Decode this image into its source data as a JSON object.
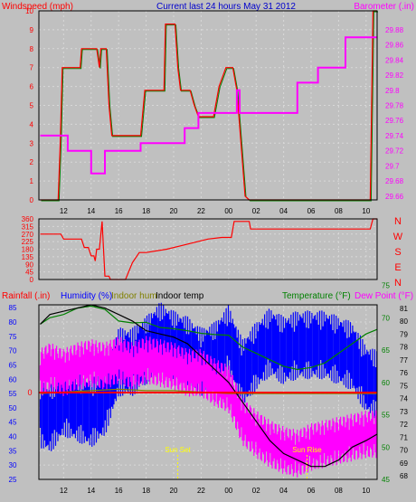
{
  "colors": {
    "background": "#c0c0c0",
    "windspeed": "#ff0000",
    "barometer": "#ff00ff",
    "direction": "#ff0000",
    "rainfall": "#ff0000",
    "humidity": "#0000ff",
    "indoor_hum": "#808000",
    "indoor_temp": "#000000",
    "temperature": "#008000",
    "dew_point": "#ff00ff",
    "sun": "#ffff00"
  },
  "chart_data": [
    {
      "type": "line",
      "title": "Current last 24 hours May 31 2012",
      "ylabel": "Windspeed (mph)",
      "ylabel_right": "Barometer (.in)",
      "x_ticks": [
        "12",
        "14",
        "16",
        "18",
        "20",
        "22",
        "00",
        "02",
        "04",
        "06",
        "08",
        "10"
      ],
      "x_tick_hours": [
        12,
        14,
        16,
        18,
        20,
        22,
        24,
        26,
        28,
        30,
        32,
        34
      ],
      "xlim": [
        10.2,
        34.8
      ],
      "ylim": [
        0,
        10
      ],
      "y_ticks": [
        "0",
        "1",
        "2",
        "3",
        "4",
        "5",
        "6",
        "7",
        "8",
        "9",
        "10"
      ],
      "ylim_right": [
        29.655,
        29.905
      ],
      "y_ticks_right": [
        "29.66",
        "29.68",
        "29.7",
        "29.72",
        "29.74",
        "29.76",
        "29.78",
        "29.8",
        "29.82",
        "29.84",
        "29.86",
        "29.88"
      ],
      "grid": true,
      "series": [
        {
          "name": "Windspeed (mph)",
          "axis": "left",
          "x": [
            10.3,
            11.6,
            11.75,
            11.9,
            12.4,
            13.2,
            13.3,
            14.4,
            14.6,
            14.7,
            15.1,
            15.3,
            15.5,
            17.4,
            17.6,
            17.9,
            18.4,
            19.3,
            19.4,
            20.1,
            20.3,
            20.5,
            21.2,
            21.5,
            21.8,
            22.2,
            22.9,
            23.3,
            23.8,
            24.3,
            24.6,
            25.2,
            25.5,
            25.6,
            27,
            29,
            31,
            33,
            34.3,
            34.5,
            34.8
          ],
          "y": [
            0,
            0,
            3,
            7,
            7,
            7,
            8,
            8,
            7,
            8,
            8,
            5,
            3.4,
            3.4,
            3.4,
            5.8,
            5.8,
            5.8,
            9.3,
            9.3,
            7,
            5.8,
            5.8,
            5,
            4.4,
            4.4,
            4.4,
            6,
            7,
            7,
            5.8,
            0.2,
            0,
            0,
            0,
            0,
            0,
            0,
            0,
            10,
            10
          ]
        },
        {
          "name": "Barometer (.in)",
          "axis": "right",
          "x": [
            10.3,
            12,
            12.3,
            13.6,
            14,
            14.7,
            15,
            17.4,
            17.6,
            20.3,
            20.8,
            21.6,
            21.8,
            22.1,
            24.3,
            24.6,
            24.8,
            25,
            28.5,
            29,
            30,
            30.5,
            32.2,
            32.5,
            34.8
          ],
          "y": [
            29.74,
            29.74,
            29.72,
            29.72,
            29.69,
            29.69,
            29.72,
            29.72,
            29.73,
            29.73,
            29.75,
            29.75,
            29.77,
            29.77,
            29.77,
            29.8,
            29.77,
            29.77,
            29.77,
            29.81,
            29.81,
            29.83,
            29.83,
            29.87,
            29.87
          ]
        }
      ]
    },
    {
      "type": "line",
      "ylabel": "",
      "ylabel_right": "N W S E N",
      "x_ticks": [
        "12",
        "14",
        "16",
        "18",
        "20",
        "22",
        "00",
        "02",
        "04",
        "06",
        "08",
        "10"
      ],
      "xlim": [
        10.2,
        34.8
      ],
      "ylim": [
        0,
        360
      ],
      "y_ticks": [
        "0",
        "45",
        "90",
        "135",
        "180",
        "225",
        "270",
        "315",
        "360"
      ],
      "grid": true,
      "series": [
        {
          "name": "Wind direction",
          "x": [
            10.3,
            11.8,
            12,
            13.3,
            13.5,
            13.8,
            14,
            14.2,
            14.3,
            14.4,
            14.6,
            14.8,
            15,
            15.3,
            15.4,
            16.5,
            17,
            17.5,
            18,
            19.5,
            20.5,
            21.5,
            22.5,
            23.5,
            24.2,
            24.4,
            25.5,
            25.6,
            28,
            31,
            33,
            34.3,
            34.5,
            34.8
          ],
          "y": [
            270,
            270,
            240,
            240,
            190,
            190,
            140,
            140,
            110,
            180,
            180,
            345,
            20,
            20,
            0,
            0,
            100,
            160,
            160,
            180,
            200,
            220,
            240,
            250,
            250,
            345,
            345,
            300,
            300,
            300,
            300,
            300,
            360,
            360
          ]
        }
      ]
    },
    {
      "type": "line",
      "ylabel": "Rainfall (.in)",
      "legend": [
        "Humidity (%)",
        "Indoor hum",
        "Indoor temp"
      ],
      "ylabel_right_1": "Temperature (°F)",
      "ylabel_right_2": "Dew Point (°F)",
      "x_ticks": [
        "12",
        "14",
        "16",
        "18",
        "20",
        "22",
        "00",
        "02",
        "04",
        "06",
        "08",
        "10"
      ],
      "xlim": [
        10.2,
        34.8
      ],
      "ylim": [
        25,
        86
      ],
      "y_ticks": [
        "25",
        "30",
        "35",
        "40",
        "45",
        "50",
        "55",
        "60",
        "65",
        "70",
        "75",
        "80",
        "85"
      ],
      "ylim_right": [
        45,
        72
      ],
      "y_ticks_right_1": [
        "45",
        "50",
        "55",
        "60",
        "65",
        "70",
        "75"
      ],
      "y_ticks_right_2": [
        "68",
        "69",
        "70",
        "71",
        "72",
        "73",
        "74",
        "75",
        "76",
        "77",
        "78",
        "79",
        "80",
        "81"
      ],
      "rain_marker": "0",
      "rain_value": 0,
      "annotations": [
        {
          "text": "Sun Set",
          "hour": 20.3
        },
        {
          "text": "Sun Rise",
          "hour": 29.7
        }
      ],
      "grid": true,
      "series": [
        {
          "name": "Humidity (%)",
          "x": [
            10.3,
            11,
            12,
            13,
            14,
            15,
            16,
            17,
            18,
            19,
            20,
            21,
            22,
            23,
            24,
            25,
            26,
            27,
            28,
            29,
            30,
            31,
            32,
            33,
            34,
            34.8
          ],
          "y": [
            48,
            46,
            52,
            50,
            48,
            52,
            66,
            66,
            70,
            75,
            72,
            70,
            66,
            68,
            74,
            62,
            68,
            73,
            70,
            72,
            72,
            72,
            70,
            68,
            60,
            58
          ]
        },
        {
          "name": "Indoor hum",
          "x": [
            10.3,
            12,
            14,
            16,
            18,
            20,
            22,
            24,
            26,
            28,
            30,
            32,
            34,
            34.8
          ],
          "y": [
            55,
            55.5,
            56,
            56.5,
            56,
            56,
            55.5,
            55,
            55,
            55,
            55,
            55,
            55,
            55
          ]
        },
        {
          "name": "Indoor temp",
          "x": [
            10.3,
            11,
            12,
            13,
            14,
            15,
            16,
            17,
            18,
            19,
            20,
            21,
            22,
            23,
            24,
            25,
            26,
            27,
            28,
            29,
            30,
            31,
            32,
            33,
            34,
            34.8
          ],
          "y": [
            69,
            70.5,
            71,
            71.5,
            72,
            71.5,
            70.5,
            69.5,
            68,
            67.5,
            67,
            66,
            64,
            62,
            60,
            57,
            54,
            51,
            49,
            48,
            47,
            47,
            48,
            50,
            51,
            52
          ]
        },
        {
          "name": "Temperature (°F)",
          "x": [
            10.3,
            11,
            12,
            13,
            14,
            15,
            16,
            17,
            18,
            19,
            20,
            21,
            22,
            23,
            24,
            25,
            26,
            27,
            28,
            29,
            30,
            31,
            32,
            33,
            34,
            34.8
          ],
          "y": [
            69,
            70,
            70.5,
            71.5,
            71.8,
            71.3,
            69.5,
            69.2,
            69.3,
            68.5,
            68.3,
            68,
            67.6,
            67.4,
            67.3,
            65.5,
            64.5,
            63.5,
            62.5,
            62,
            62.3,
            63,
            64.5,
            66,
            67.5,
            68.2
          ]
        },
        {
          "name": "Dew Point (°F)",
          "x": [
            10.3,
            11,
            12,
            13,
            14,
            15,
            16,
            17,
            18,
            19,
            20,
            21,
            22,
            23,
            24,
            25,
            26,
            27,
            28,
            29,
            30,
            31,
            32,
            33,
            34,
            34.8
          ],
          "y": [
            61.5,
            62.5,
            61.5,
            62.5,
            63,
            62.5,
            63.5,
            62.5,
            63.5,
            63,
            62.5,
            61.5,
            61.5,
            60,
            59,
            54,
            52,
            50.5,
            49.5,
            49,
            50,
            50.5,
            51,
            51.5,
            52,
            52
          ]
        }
      ]
    }
  ]
}
